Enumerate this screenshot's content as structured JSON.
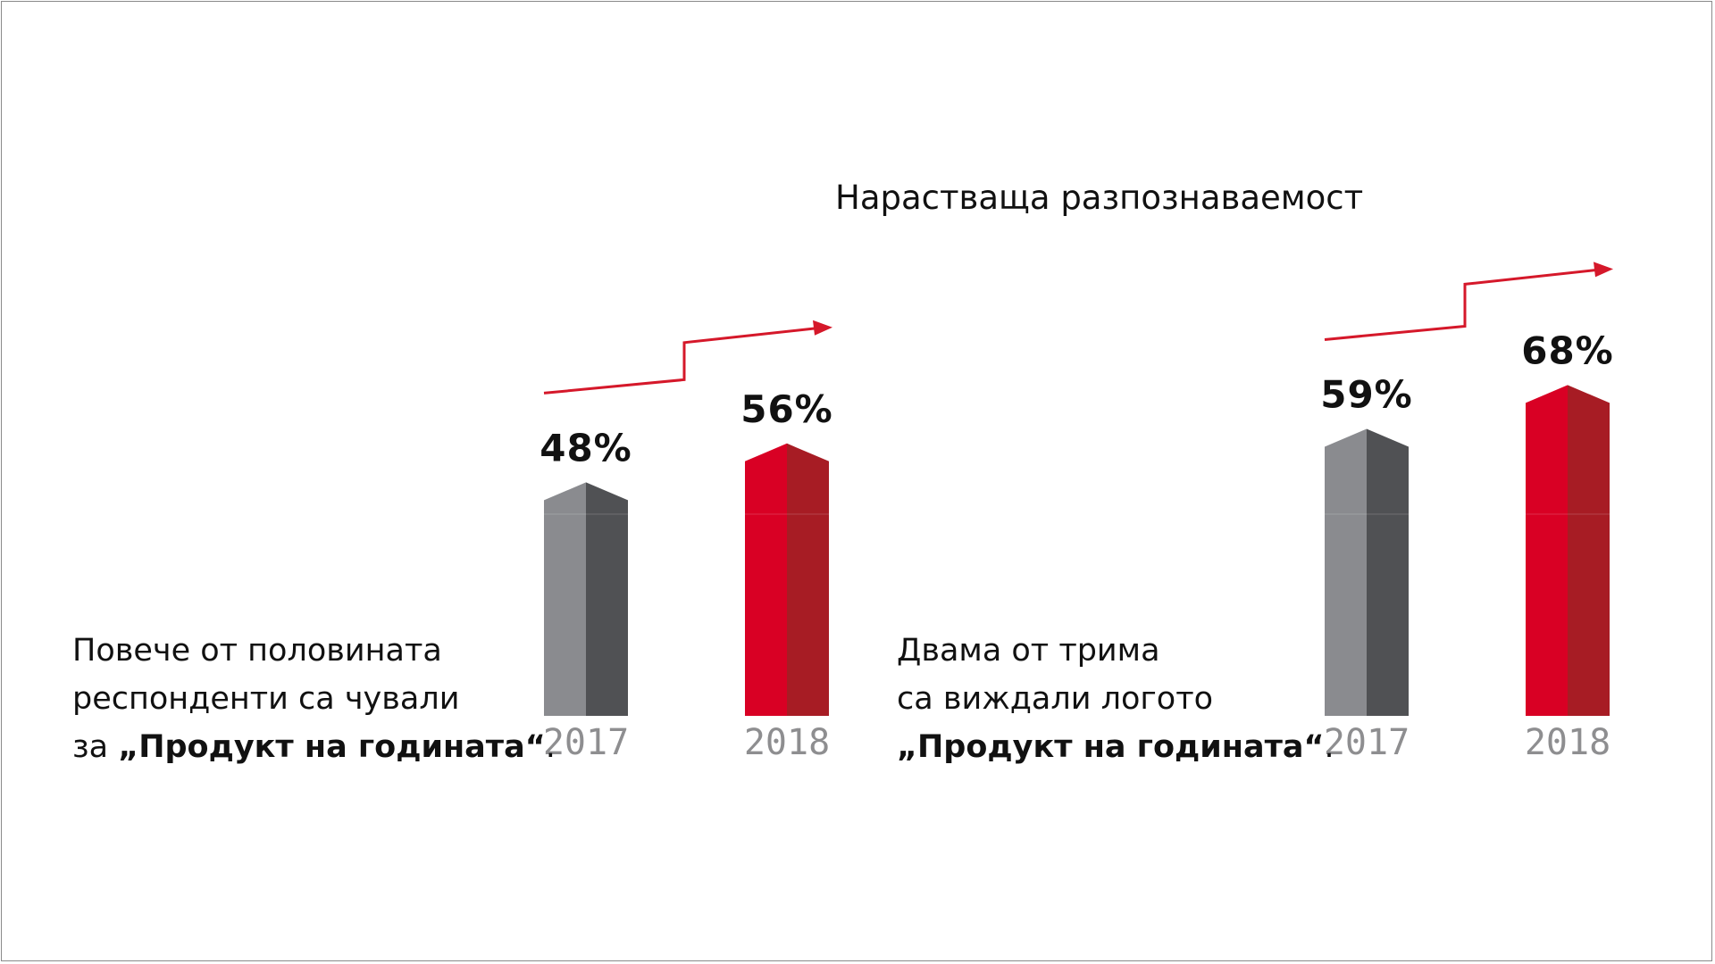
{
  "title": "Нарастваща разпознаваемост",
  "captions": {
    "left": {
      "line1": "Повече от половината",
      "line2": "респонденти са чували",
      "line3_prefix": "за ",
      "line3_bold": "„Продукт на годината“",
      "line3_suffix": "."
    },
    "right": {
      "line1": "Двама от трима",
      "line2": "са виждали логото",
      "line3_bold": "„Продукт на годината“",
      "line3_suffix": "."
    }
  },
  "colors": {
    "gray_light": "#8a8b8f",
    "gray_dark": "#505154",
    "red_light": "#d90024",
    "red_dark": "#a71c24",
    "arrow": "#d5182a"
  },
  "chart_data": [
    {
      "type": "bar",
      "categories": [
        "2017",
        "2018"
      ],
      "values": [
        48,
        56
      ],
      "value_labels": [
        "48%",
        "56%"
      ],
      "trend_arrow": "up",
      "bar_colors": [
        "gray",
        "red"
      ]
    },
    {
      "type": "bar",
      "categories": [
        "2017",
        "2018"
      ],
      "values": [
        59,
        68
      ],
      "value_labels": [
        "59%",
        "68%"
      ],
      "trend_arrow": "up",
      "bar_colors": [
        "gray",
        "red"
      ]
    }
  ]
}
